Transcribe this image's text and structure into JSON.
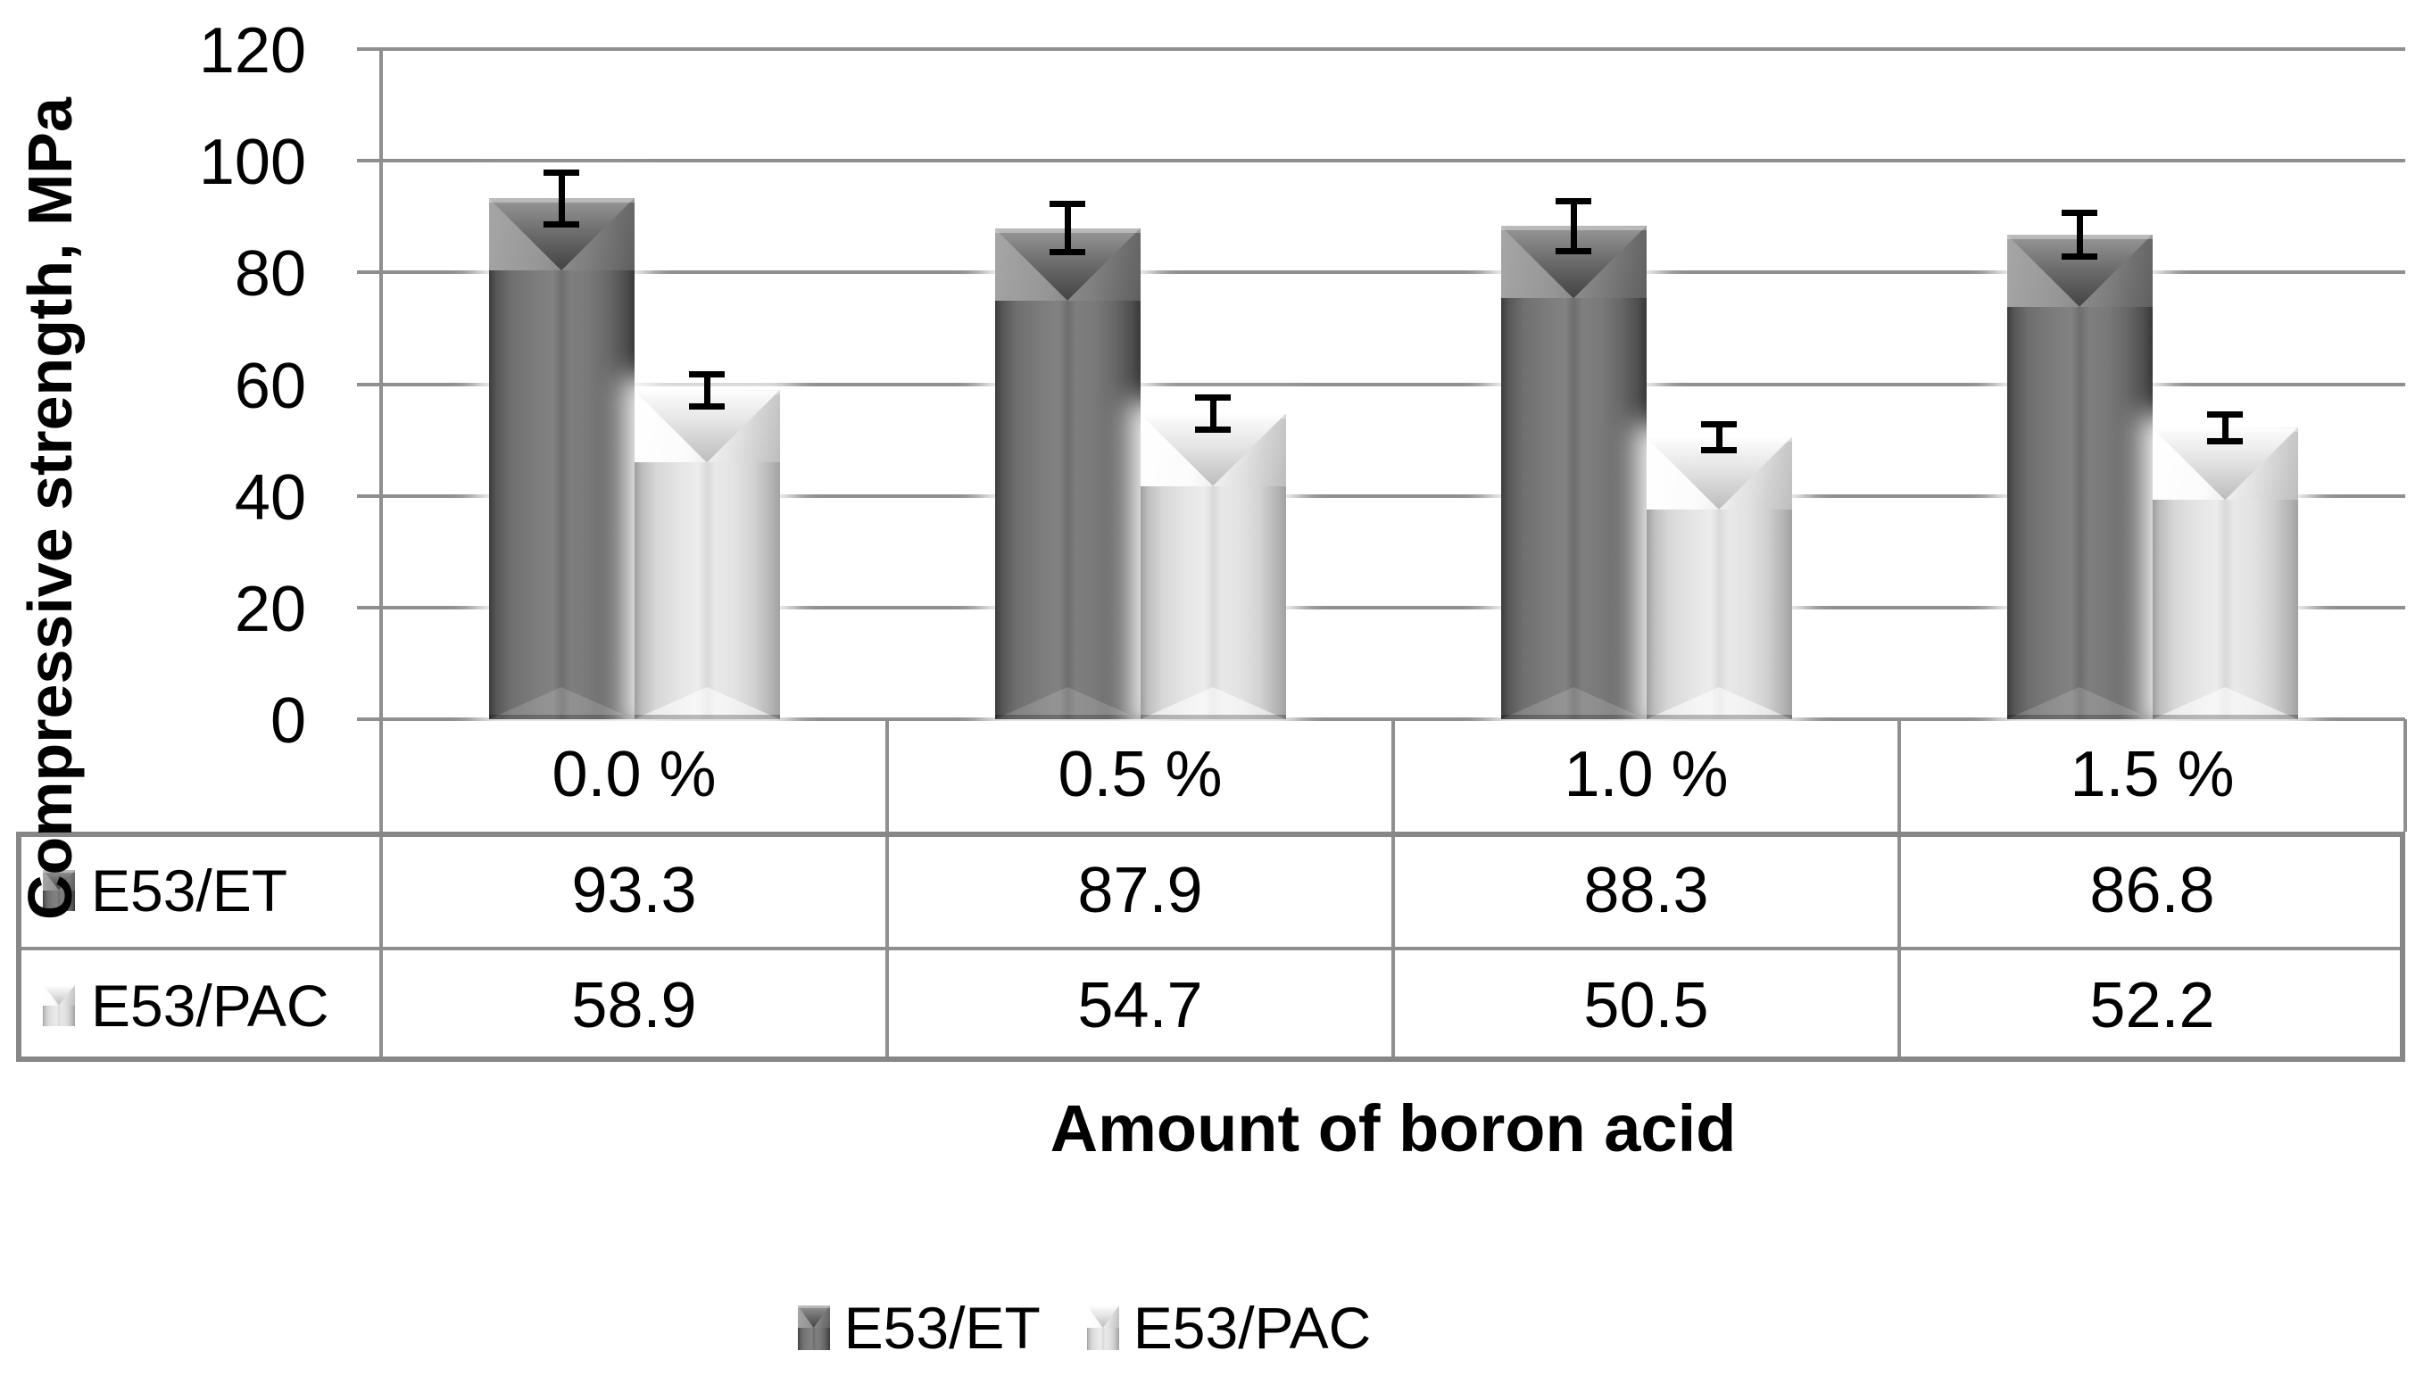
{
  "chart_data": {
    "type": "bar",
    "title": "",
    "xlabel": "Amount of boron acid",
    "ylabel": "Compressive strength, MPa",
    "categories": [
      "0.0 %",
      "0.5 %",
      "1.0 %",
      "1.5 %"
    ],
    "series": [
      {
        "name": "E53/ET",
        "values": [
          93.3,
          87.9,
          88.3,
          86.8
        ],
        "errors": [
          4.7,
          4.4,
          4.5,
          4.0
        ],
        "color": "#6e6e6e"
      },
      {
        "name": "E53/PAC",
        "values": [
          58.9,
          54.7,
          50.5,
          52.2
        ],
        "errors": [
          3.0,
          3.0,
          2.4,
          2.5
        ],
        "color": "#dcdcdc"
      }
    ],
    "ylim": [
      0,
      120
    ],
    "yticks": [
      120,
      100,
      80,
      60,
      40,
      20,
      0
    ],
    "grid": true,
    "error_bars": true,
    "legend_position": "bottom",
    "data_table_shown": true
  },
  "axes": {
    "y_title": "Compressive strength, MPa",
    "x_title": "Amount of boron acid"
  },
  "table": {
    "rows": [
      {
        "label": "E53/ET",
        "values": [
          "93.3",
          "87.9",
          "88.3",
          "86.8"
        ]
      },
      {
        "label": "E53/PAC",
        "values": [
          "58.9",
          "54.7",
          "50.5",
          "52.2"
        ]
      }
    ]
  },
  "legend": {
    "items": [
      "E53/ET",
      "E53/PAC"
    ]
  },
  "colors": {
    "gridline": "#8f8f8f",
    "axis_line": "#8f8f8f",
    "table_outer_border": "#878787",
    "table_inner_border": "#8f8f8f",
    "error_bar": "#000000",
    "text": "#000000",
    "bar_dark": "#6e6e6e",
    "bar_light": "#dcdcdc"
  }
}
